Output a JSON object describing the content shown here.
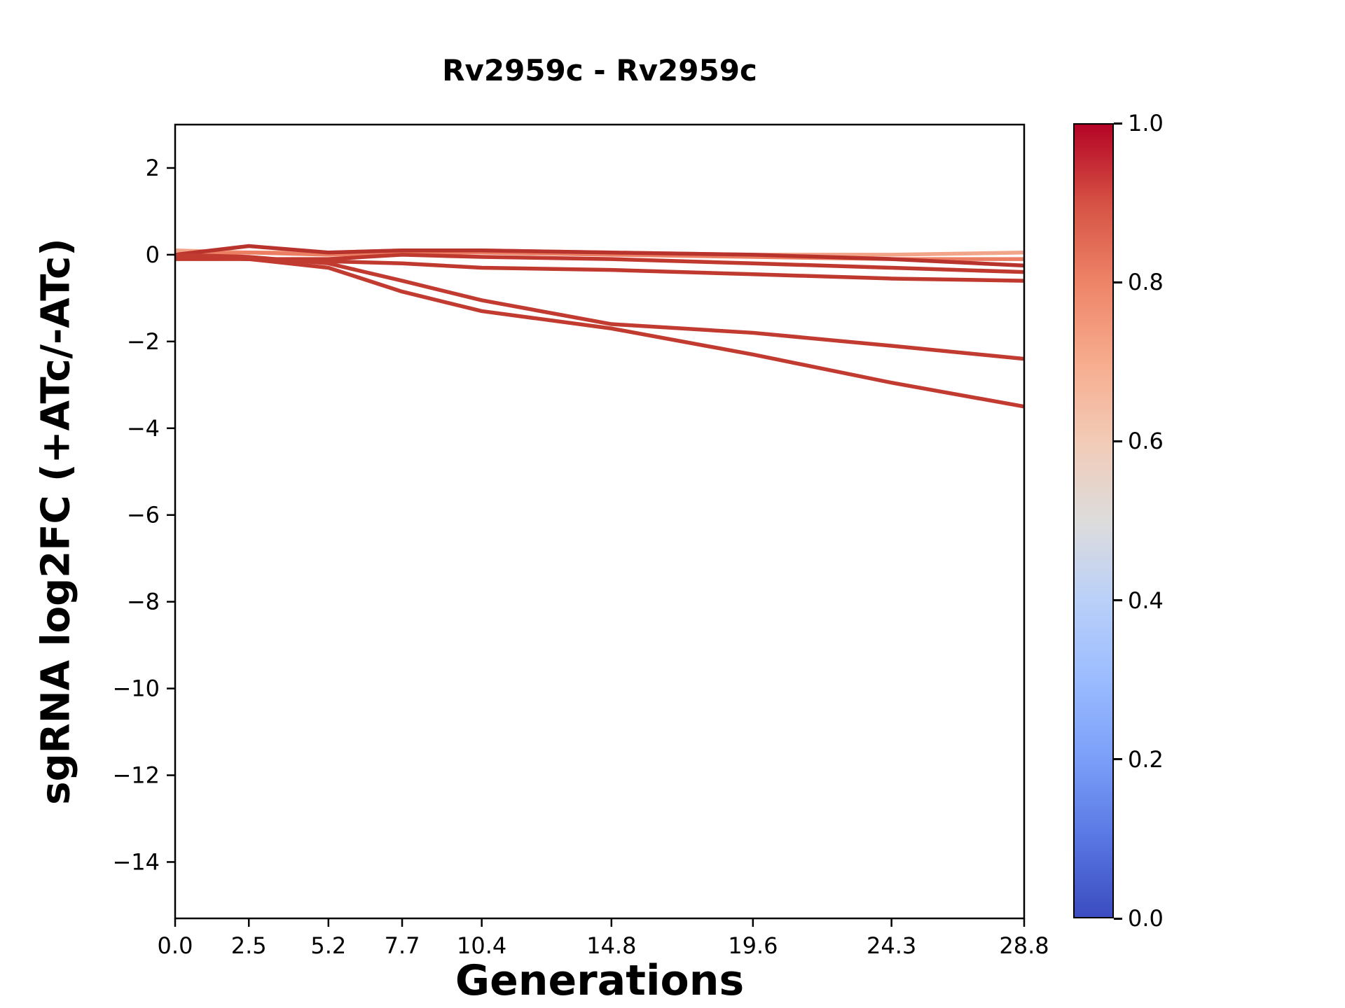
{
  "figure": {
    "background": "#ffffff"
  },
  "chart_data": {
    "type": "line",
    "title": "Rv2959c - Rv2959c",
    "xlabel": "Generations",
    "ylabel": "sgRNA log2FC (+ATc/-ATc)",
    "x": [
      0.0,
      2.5,
      5.2,
      7.7,
      10.4,
      14.8,
      19.6,
      24.3,
      28.8
    ],
    "xticks": [
      "0.0",
      "2.5",
      "5.2",
      "7.7",
      "10.4",
      "14.8",
      "19.6",
      "24.3",
      "28.8"
    ],
    "xtick_values": [
      0.0,
      2.5,
      5.2,
      7.7,
      10.4,
      14.8,
      19.6,
      24.3,
      28.8
    ],
    "yticks": [
      "2",
      "0",
      "−2",
      "−4",
      "−6",
      "−8",
      "−10",
      "−12",
      "−14"
    ],
    "ytick_values": [
      2,
      0,
      -2,
      -4,
      -6,
      -8,
      -10,
      -12,
      -14
    ],
    "xlim": [
      0.0,
      28.8
    ],
    "ylim": [
      -15.3,
      3.0
    ],
    "grid": false,
    "legend": "none",
    "line_width": 5.5,
    "series": [
      {
        "name": "line-1",
        "color_value": 0.65,
        "color": "#f2a488",
        "y": [
          0.1,
          0.05,
          0.05,
          0.1,
          0.1,
          0.05,
          0.0,
          0.0,
          0.05
        ]
      },
      {
        "name": "line-2",
        "color_value": 0.8,
        "color": "#ec7f63",
        "y": [
          0.0,
          0.05,
          0.0,
          0.05,
          0.05,
          0.0,
          -0.05,
          -0.1,
          -0.1
        ]
      },
      {
        "name": "line-3",
        "color_value": 0.97,
        "color": "#b9332d",
        "y": [
          0.0,
          0.2,
          0.05,
          0.1,
          0.1,
          0.05,
          0.0,
          -0.1,
          -0.25
        ]
      },
      {
        "name": "line-4",
        "color_value": 0.95,
        "color": "#c0392f",
        "y": [
          -0.05,
          -0.1,
          -0.1,
          0.0,
          -0.05,
          -0.1,
          -0.2,
          -0.3,
          -0.4
        ]
      },
      {
        "name": "line-5",
        "color_value": 0.95,
        "color": "#c0392f",
        "y": [
          -0.1,
          -0.1,
          -0.15,
          -0.2,
          -0.3,
          -0.35,
          -0.45,
          -0.55,
          -0.6
        ]
      },
      {
        "name": "line-6",
        "color_value": 0.93,
        "color": "#c23b31",
        "y": [
          0.0,
          -0.05,
          -0.2,
          -0.6,
          -1.05,
          -1.6,
          -1.8,
          -2.1,
          -2.4
        ]
      },
      {
        "name": "line-7",
        "color_value": 0.93,
        "color": "#c23b31",
        "y": [
          -0.05,
          -0.1,
          -0.3,
          -0.85,
          -1.3,
          -1.7,
          -2.3,
          -2.95,
          -3.5
        ]
      }
    ],
    "colorbar": {
      "min": 0.0,
      "max": 1.0,
      "ticks": [
        "1.0",
        "0.8",
        "0.6",
        "0.4",
        "0.2",
        "0.0"
      ],
      "tick_values": [
        1.0,
        0.8,
        0.6,
        0.4,
        0.2,
        0.0
      ],
      "colormap_name": "coolwarm",
      "colormap": [
        {
          "value": 0.0,
          "color": "#3b4cc0"
        },
        {
          "value": 0.1,
          "color": "#5977e3"
        },
        {
          "value": 0.2,
          "color": "#7b9ff9"
        },
        {
          "value": 0.3,
          "color": "#9bbcff"
        },
        {
          "value": 0.4,
          "color": "#bad0f8"
        },
        {
          "value": 0.5,
          "color": "#dddcdc"
        },
        {
          "value": 0.6,
          "color": "#f2cbb7"
        },
        {
          "value": 0.7,
          "color": "#f7ac8e"
        },
        {
          "value": 0.8,
          "color": "#ee8468"
        },
        {
          "value": 0.9,
          "color": "#d65244"
        },
        {
          "value": 1.0,
          "color": "#b40426"
        }
      ]
    }
  }
}
